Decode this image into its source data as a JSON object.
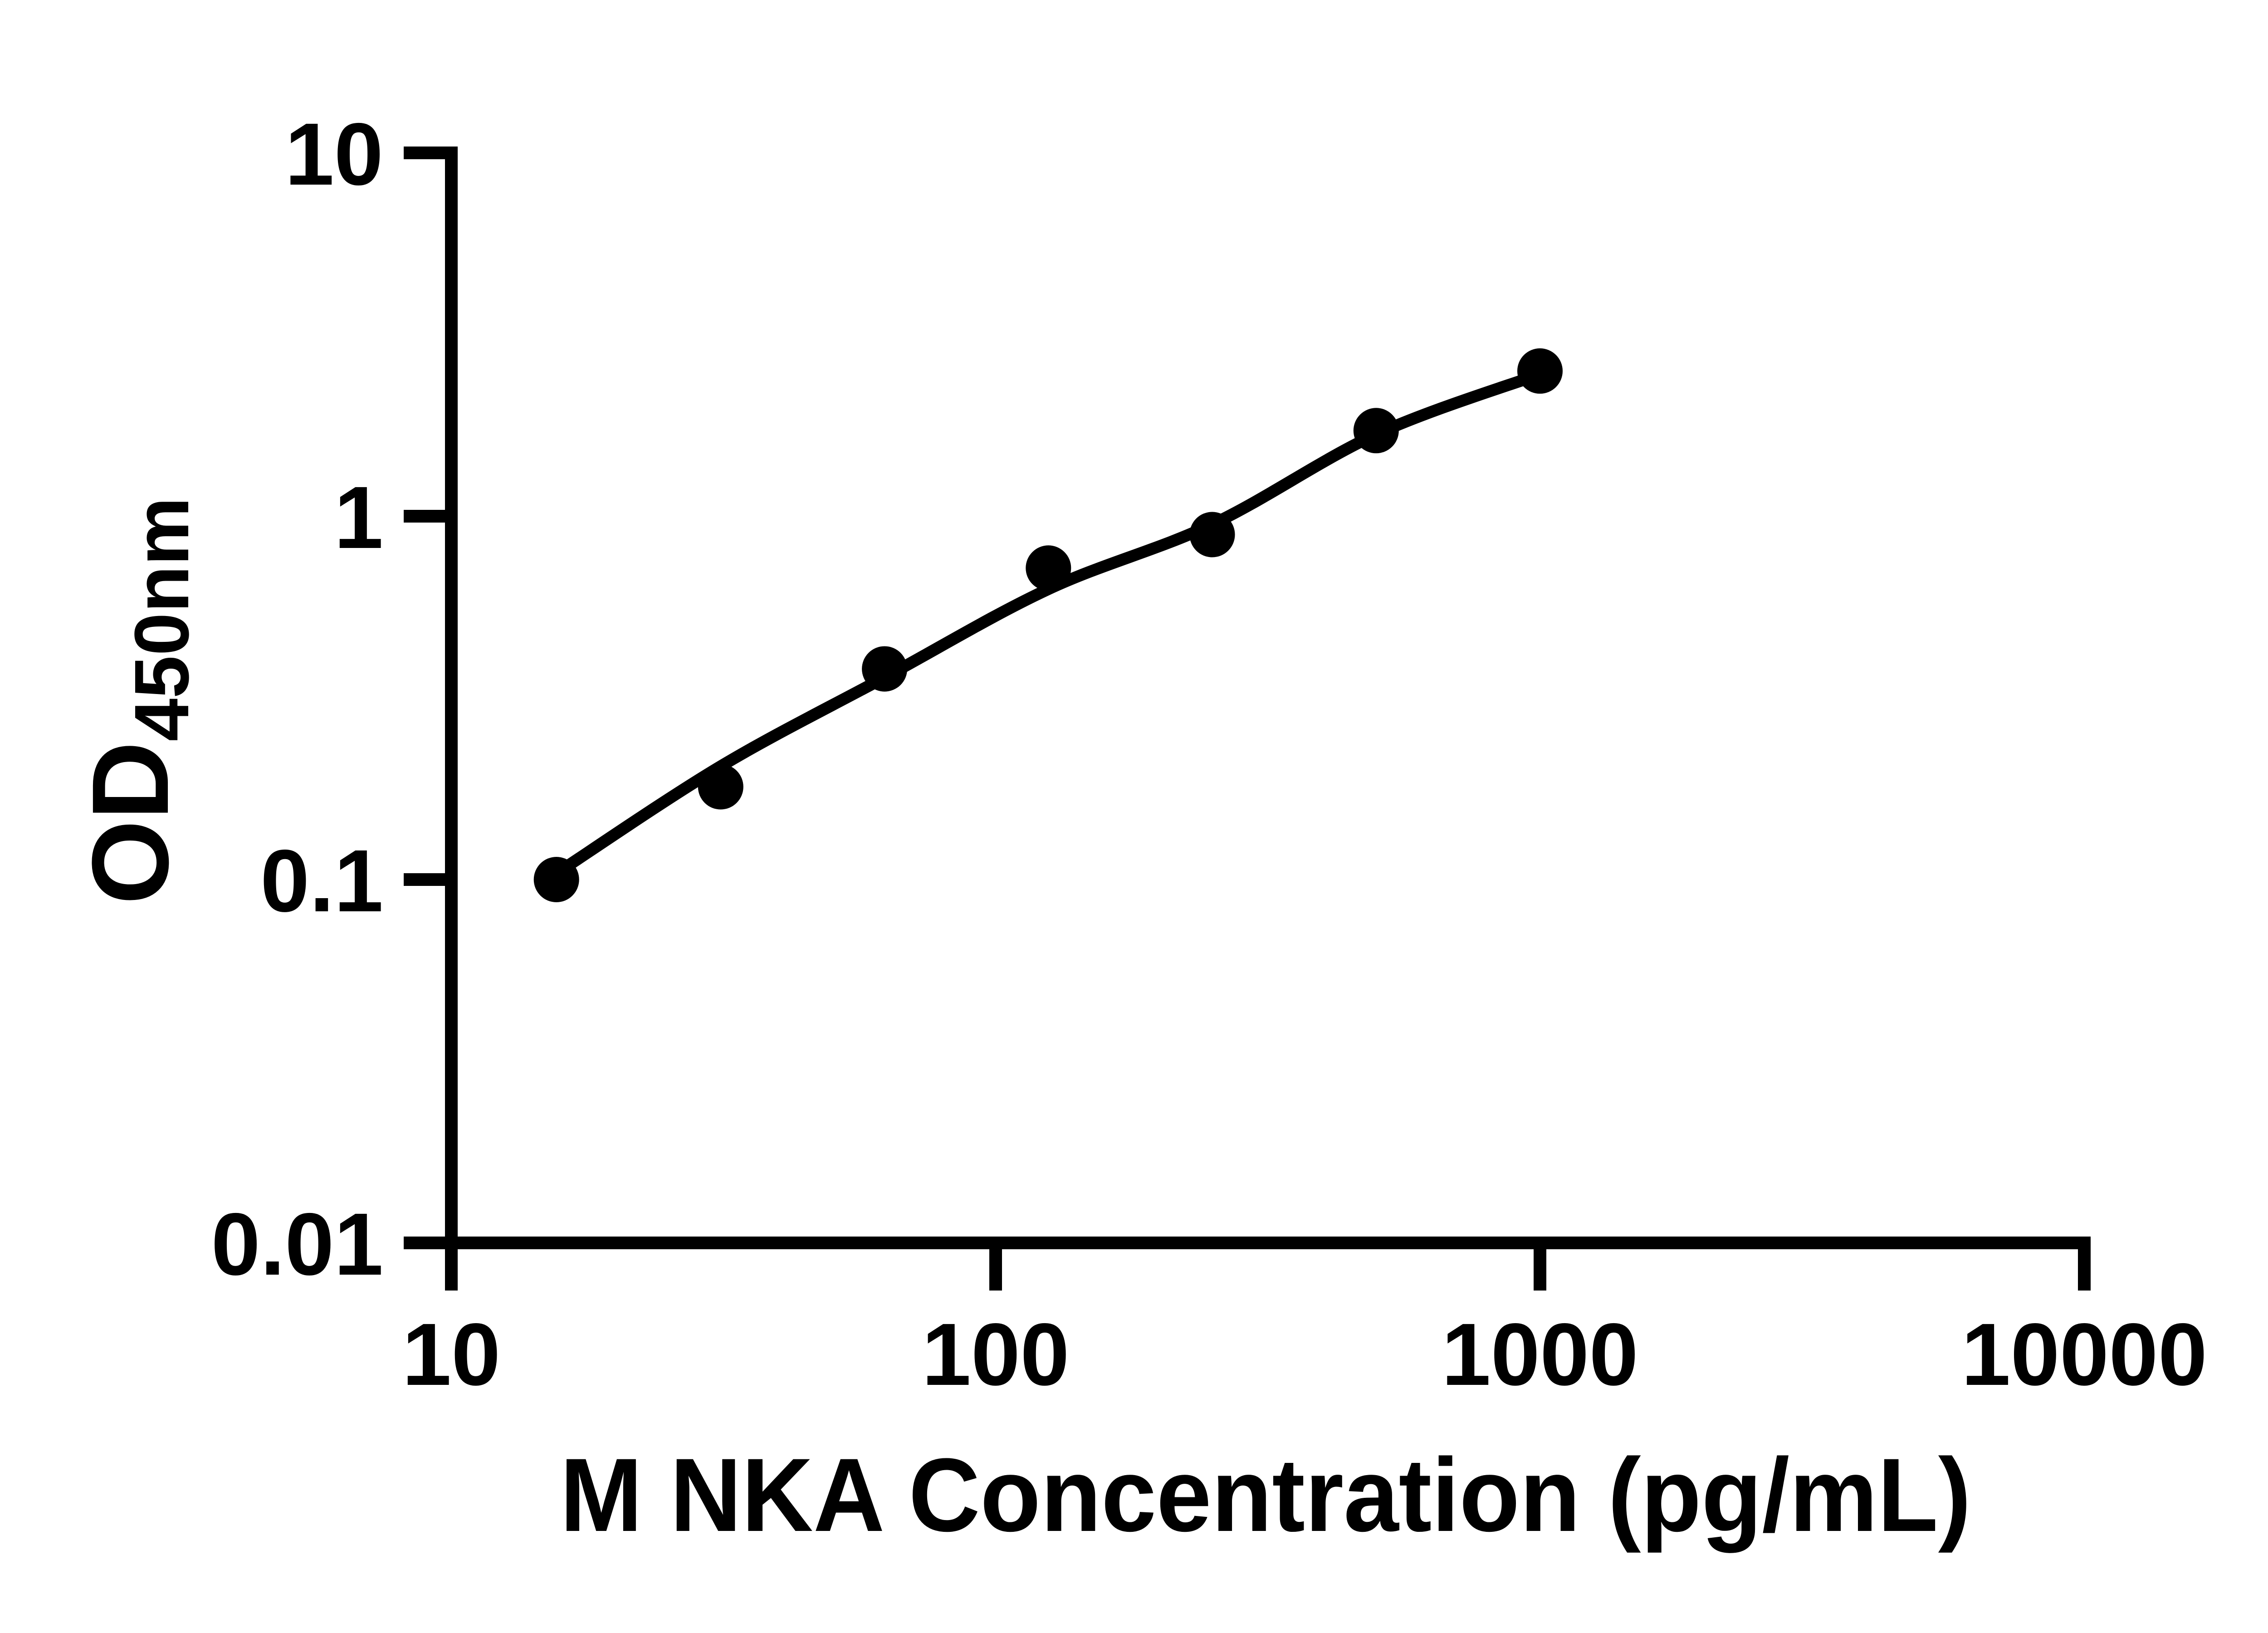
{
  "figure": {
    "background_color": "#ffffff",
    "ink_color": "#000000"
  },
  "chart_data": {
    "type": "scatter",
    "title": "",
    "xlabel": "M NKA Concentration (pg/mL)",
    "ylabel_main": "OD",
    "ylabel_sub": "450nm",
    "x_scale": "log10",
    "y_scale": "log10",
    "xlim": [
      10,
      10000
    ],
    "ylim": [
      0.01,
      10
    ],
    "grid": false,
    "legend": "none",
    "x_ticks": [
      {
        "value": 10,
        "label": "10"
      },
      {
        "value": 100,
        "label": "100"
      },
      {
        "value": 1000,
        "label": "1000"
      },
      {
        "value": 10000,
        "label": "10000"
      }
    ],
    "y_ticks": [
      {
        "value": 10,
        "label": "10"
      },
      {
        "value": 1,
        "label": "1"
      },
      {
        "value": 0.1,
        "label": "0.1"
      },
      {
        "value": 0.01,
        "label": "0.01"
      }
    ],
    "series": [
      {
        "name": "standard-points",
        "type": "scatter",
        "marker": "filled-circle",
        "color": "#000000",
        "x": [
          15.6,
          31.25,
          62.5,
          125,
          250,
          500,
          1000
        ],
        "y": [
          0.1,
          0.18,
          0.38,
          0.72,
          0.89,
          1.72,
          2.51
        ]
      },
      {
        "name": "fit-curve",
        "type": "line",
        "color": "#000000",
        "x": [
          15.6,
          31.25,
          62.5,
          125,
          250,
          500,
          1000
        ],
        "y": [
          0.104,
          0.205,
          0.36,
          0.63,
          0.95,
          1.68,
          2.46
        ]
      }
    ]
  }
}
